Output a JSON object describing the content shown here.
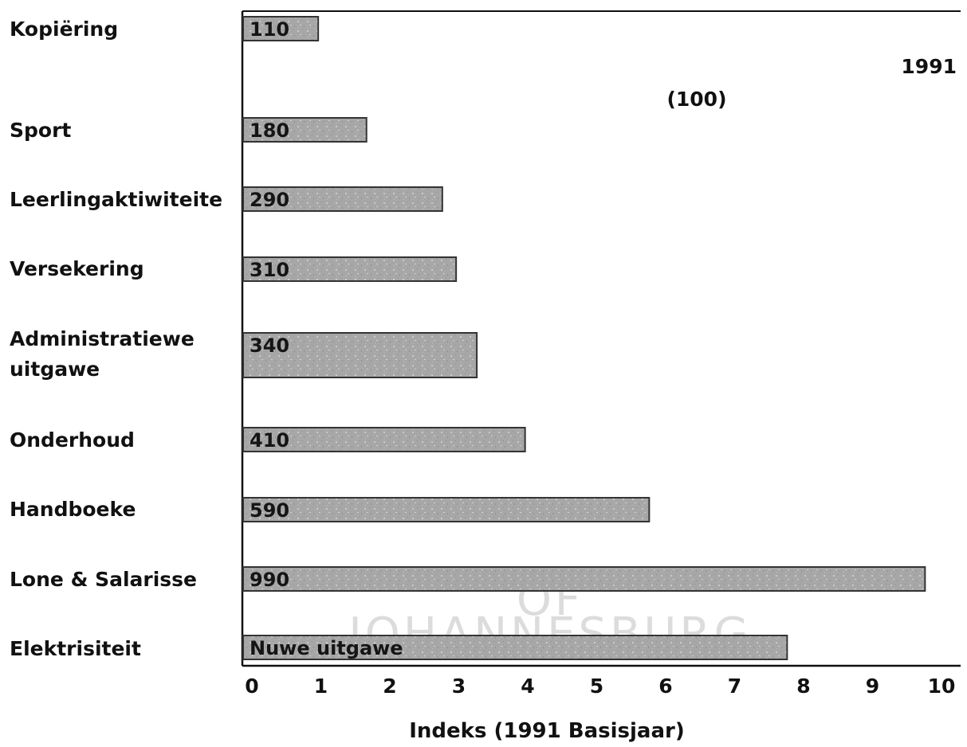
{
  "chart_data": {
    "type": "bar",
    "orientation": "horizontal",
    "categories": [
      "Kopiëring",
      "Sport",
      "Leerlingaktiwiteite",
      "Versekering",
      "Administratiewe uitgawe",
      "Onderhoud",
      "Handboeke",
      "Lone & Salarisse",
      "Elektrisiteit"
    ],
    "values": [
      1.1,
      1.8,
      2.9,
      3.1,
      3.4,
      4.1,
      5.9,
      9.9,
      7.9
    ],
    "data_labels": [
      "110",
      "180",
      "290",
      "310",
      "340",
      "410",
      "590",
      "990",
      "Nuwe uitgawe"
    ],
    "xlabel": "Indeks (1991 Basisjaar)",
    "ylabel": "",
    "xlim": [
      0,
      10
    ],
    "xticks": [
      "0",
      "1",
      "2",
      "3",
      "4",
      "5",
      "6",
      "7",
      "8",
      "9",
      "10"
    ],
    "annotations": [
      "1991",
      "(100)"
    ],
    "grid": false,
    "bar_color": "#a9a9a9",
    "bar_border_color": "#333333"
  },
  "watermark": {
    "lines": [
      "OF",
      "JOHANNESBURG"
    ]
  }
}
